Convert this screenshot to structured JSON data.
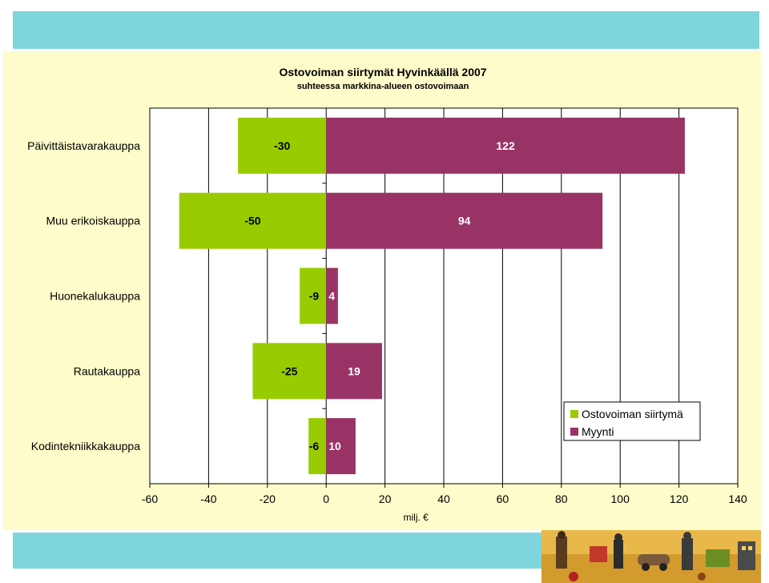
{
  "chart_data": {
    "type": "bar",
    "orientation": "horizontal",
    "stacked": "diverging",
    "title": "Ostovoiman siirtymät Hyvinkäällä 2007",
    "subtitle": "suhteessa markkina-alueen ostovoimaan",
    "xlabel": "milj. €",
    "ylabel": "",
    "xlim": [
      -60,
      140
    ],
    "xticks": [
      -60,
      -40,
      -20,
      0,
      20,
      40,
      60,
      80,
      100,
      120,
      140
    ],
    "grid": "vertical",
    "legend_position": "bottom-right",
    "categories": [
      "Päivittäistavarakauppa",
      "Muu erikoiskauppa",
      "Huonekalukauppa",
      "Rautakauppa",
      "Kodintekniikkakauppa"
    ],
    "series": [
      {
        "name": "Ostovoiman siirtymä",
        "color": "#99cc00",
        "values": [
          -30,
          -50,
          -9,
          -25,
          -6
        ]
      },
      {
        "name": "Myynti",
        "color": "#993366",
        "values": [
          122,
          94,
          4,
          19,
          10
        ]
      }
    ]
  },
  "colors": {
    "slide_background": "#fdfcca",
    "top_band": "#7ed6dc",
    "bottom_band": "#7ed6dc",
    "plot_background": "#ffffff"
  },
  "decoration": "illustrated-city-collage"
}
